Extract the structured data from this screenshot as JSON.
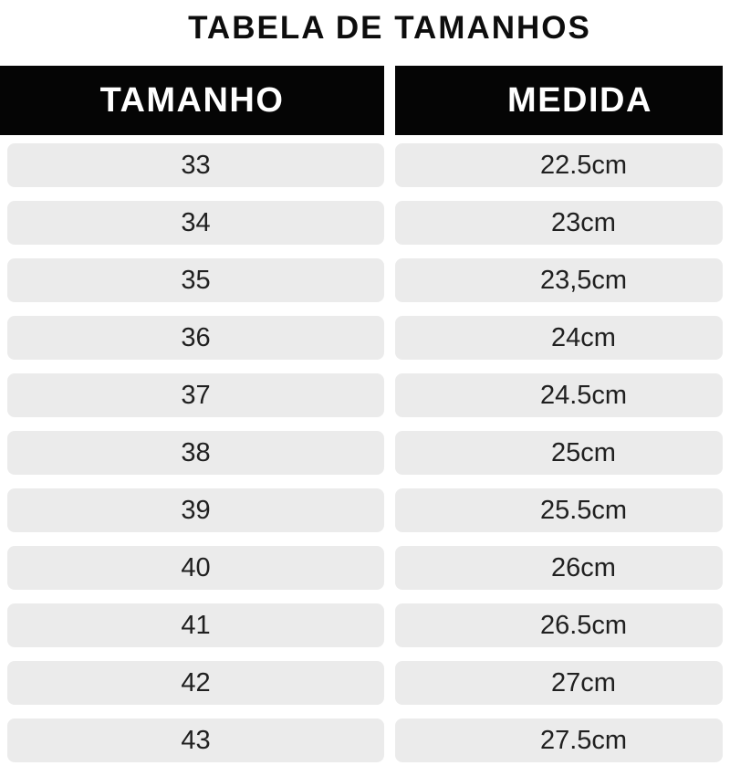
{
  "title": "TABELA DE TAMANHOS",
  "table": {
    "headers": {
      "size": "TAMANHO",
      "measure": "MEDIDA"
    },
    "rows": [
      {
        "size": "33",
        "measure": "22.5cm"
      },
      {
        "size": "34",
        "measure": "23cm"
      },
      {
        "size": "35",
        "measure": "23,5cm"
      },
      {
        "size": "36",
        "measure": "24cm"
      },
      {
        "size": "37",
        "measure": "24.5cm"
      },
      {
        "size": "38",
        "measure": "25cm"
      },
      {
        "size": "39",
        "measure": "25.5cm"
      },
      {
        "size": "40",
        "measure": "26cm"
      },
      {
        "size": "41",
        "measure": "26.5cm"
      },
      {
        "size": "42",
        "measure": "27cm"
      },
      {
        "size": "43",
        "measure": "27.5cm"
      }
    ]
  },
  "colors": {
    "page_bg": "#ffffff",
    "header_bg": "#050505",
    "header_text": "#ffffff",
    "row_bg": "#ebebeb",
    "text": "#202020",
    "title_text": "#0d0d0d"
  },
  "chart_data": {
    "type": "table",
    "title": "TABELA DE TAMANHOS",
    "columns": [
      "TAMANHO",
      "MEDIDA"
    ],
    "rows": [
      [
        "33",
        "22.5cm"
      ],
      [
        "34",
        "23cm"
      ],
      [
        "35",
        "23,5cm"
      ],
      [
        "36",
        "24cm"
      ],
      [
        "37",
        "24.5cm"
      ],
      [
        "38",
        "25cm"
      ],
      [
        "39",
        "25.5cm"
      ],
      [
        "40",
        "26cm"
      ],
      [
        "41",
        "26.5cm"
      ],
      [
        "42",
        "27cm"
      ],
      [
        "43",
        "27.5cm"
      ]
    ],
    "sizes_numeric": [
      33,
      34,
      35,
      36,
      37,
      38,
      39,
      40,
      41,
      42,
      43
    ],
    "measures_cm": [
      22.5,
      23,
      23.5,
      24,
      24.5,
      25,
      25.5,
      26,
      26.5,
      27,
      27.5
    ]
  }
}
